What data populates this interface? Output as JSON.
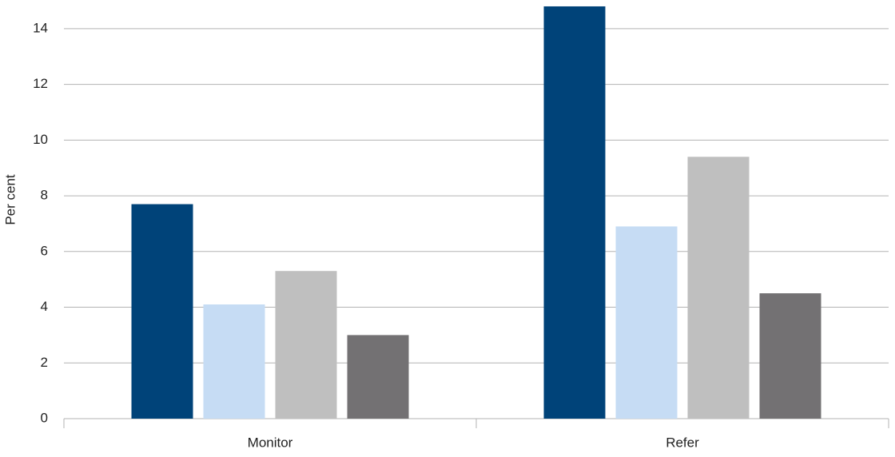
{
  "chart_data": {
    "type": "bar",
    "y_label": "Per cent",
    "categories": [
      "Monitor",
      "Refer"
    ],
    "series": [
      {
        "color": "#004379",
        "values": [
          7.7,
          14.8
        ]
      },
      {
        "color": "#c6dcf4",
        "values": [
          4.1,
          6.9
        ]
      },
      {
        "color": "#bfbfbf",
        "values": [
          5.3,
          9.4
        ]
      },
      {
        "color": "#737173",
        "values": [
          3.0,
          4.5
        ]
      }
    ],
    "ylim": [
      0,
      15
    ],
    "yticks": [
      0,
      2,
      4,
      6,
      8,
      10,
      12,
      14
    ],
    "grid": true
  }
}
